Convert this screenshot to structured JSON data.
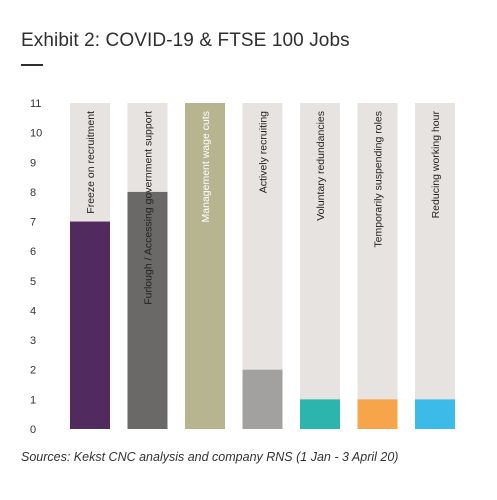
{
  "title": "Exhibit 2: COVID-19 & FTSE 100 Jobs",
  "source_note": "Sources: Kekst CNC analysis and company RNS (1 Jan - 3 April 20)",
  "chart_data": {
    "type": "bar",
    "title": "Exhibit 2: COVID-19 & FTSE 100 Jobs",
    "xlabel": "",
    "ylabel": "",
    "ylim": [
      0,
      11
    ],
    "yticks": [
      0,
      1,
      2,
      3,
      4,
      5,
      6,
      7,
      8,
      9,
      10,
      11
    ],
    "grid": false,
    "background_bars": true,
    "categories": [
      "Freeze on recruitment",
      "Furlough / Accessing government support",
      "Management wage cuts",
      "Actively recruiting",
      "Voluntary redundancies",
      "Temporarily suspending roles",
      "Reducing working hour"
    ],
    "values": [
      7,
      8,
      11,
      2,
      1,
      1,
      1
    ],
    "colors": [
      "#512a5e",
      "#6b6868",
      "#b6b58f",
      "#a2a1a0",
      "#2bb5ad",
      "#f6a54a",
      "#3cbbe9"
    ],
    "background_color": "#e7e3e1"
  }
}
